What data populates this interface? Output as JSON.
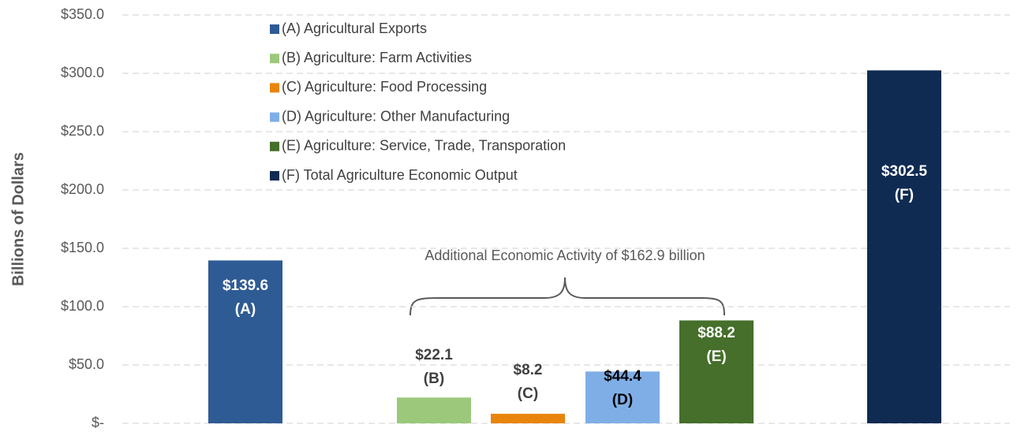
{
  "chart_data": {
    "type": "bar",
    "y_axis_label": "Billions of Dollars",
    "annotation": "Additional Economic Activity of $162.9 billion",
    "categories": [
      "(A) Agricultural Exports",
      "(B) Agriculture:  Farm Activities",
      "(C) Agriculture:  Food Processing",
      "(D) Agriculture:  Other Manufacturing",
      "(E) Agriculture:  Service, Trade, Transporation",
      "(F) Total Agriculture Economic Output"
    ],
    "values": [
      139.6,
      22.1,
      8.2,
      44.4,
      88.2,
      302.5
    ],
    "value_labels": [
      "$139.6",
      "$22.1",
      "$8.2",
      "$44.4",
      "$88.2",
      "$302.5"
    ],
    "bar_labels": [
      "(A)",
      "(B)",
      "(C)",
      "(D)",
      "(E)",
      "(F)"
    ],
    "colors": [
      "#2e5b94",
      "#9bc87a",
      "#e8850c",
      "#7faee6",
      "#456f2a",
      "#0f2b52"
    ],
    "ylim": [
      0,
      350
    ],
    "yticks": [
      {
        "value": 0,
        "label": "$-"
      },
      {
        "value": 50,
        "label": "$50.0"
      },
      {
        "value": 100,
        "label": "$100.0"
      },
      {
        "value": 150,
        "label": "$150.0"
      },
      {
        "value": 200,
        "label": "$200.0"
      },
      {
        "value": 250,
        "label": "$250.0"
      },
      {
        "value": 300,
        "label": "$300.0"
      },
      {
        "value": 350,
        "label": "$350.0"
      }
    ],
    "grid": true
  }
}
